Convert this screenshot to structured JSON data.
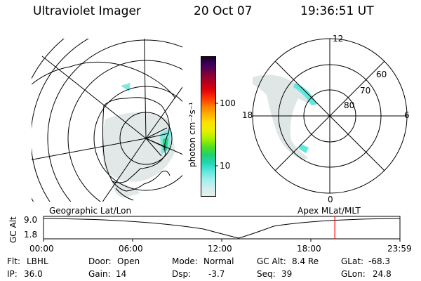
{
  "header": {
    "instrument": "Ultraviolet Imager",
    "date": "20 Oct 07",
    "time": "19:36:51 UT"
  },
  "colorbar": {
    "unit": "photon cm⁻²s⁻¹",
    "ticks": [
      "100",
      "10"
    ],
    "colors": [
      "#1a0030",
      "#40005a",
      "#7a0040",
      "#b0001e",
      "#e0000e",
      "#ff3200",
      "#ff7a00",
      "#ffb000",
      "#ffe000",
      "#e8f000",
      "#a8f000",
      "#50e020",
      "#20d070",
      "#20d8b8",
      "#60e8e0",
      "#a0eeee",
      "#cfeeee",
      "#e8eeee"
    ]
  },
  "left_map": {
    "label": "Geographic Lat/Lon"
  },
  "right_map": {
    "label": "Apex MLat/MLT",
    "mlt_labels": {
      "top": "12",
      "left": "18",
      "right": "6",
      "bottom": "0"
    },
    "lat_labels": [
      "60",
      "70",
      "80"
    ]
  },
  "timeline": {
    "ylabel": "GC Alt",
    "yticks": [
      "9.0",
      "1.8"
    ],
    "xticks": [
      "00:00",
      "06:00",
      "12:00",
      "18:00",
      "23:59"
    ],
    "marker_time": "19:36:51",
    "marker_color": "#ff0000"
  },
  "metadata": {
    "flt_label": "Flt:",
    "flt": "LBHL",
    "ip_label": "IP:",
    "ip": "36.0",
    "door_label": "Door:",
    "door": "Open",
    "gain_label": "Gain:",
    "gain": "14",
    "mode_label": "Mode:",
    "mode": "Normal",
    "dsp_label": "Dsp:",
    "dsp": "-3.7",
    "gcalt_label": "GC Alt:",
    "gcalt": "8.4 Re",
    "seq_label": "Seq:",
    "seq": "39",
    "glat_label": "GLat:",
    "glat": "-68.3",
    "glon_label": "GLon:",
    "glon": "24.8"
  }
}
